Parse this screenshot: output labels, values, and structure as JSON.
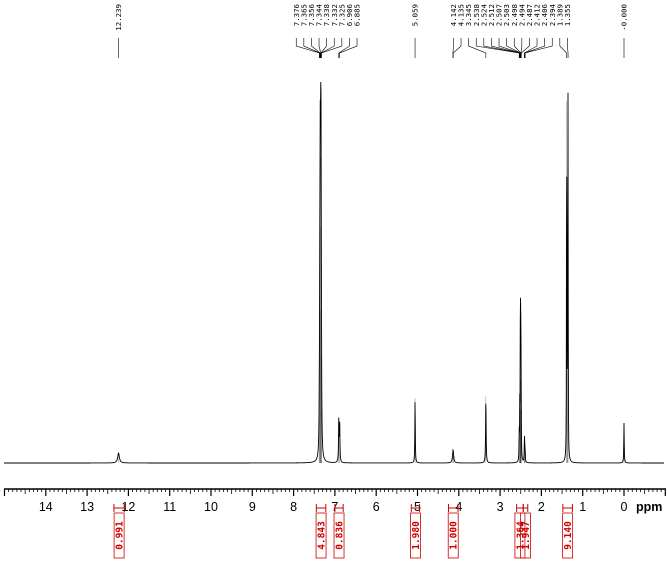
{
  "chart_data": {
    "type": "line",
    "title": "",
    "xlabel": "ppm",
    "ylabel": "",
    "x_reversed": true,
    "xlim": [
      15.0,
      -1.0
    ],
    "x_major_ticks": [
      14,
      13,
      12,
      11,
      10,
      9,
      8,
      7,
      6,
      5,
      4,
      3,
      2,
      1,
      0
    ],
    "x_minor_tick_step": 0.1,
    "ylim": [
      0,
      100
    ],
    "grid": false,
    "legend": "none",
    "colors": {
      "spectrum": "#000000",
      "integrals": "#cc0000",
      "axis": "#000000"
    },
    "peak_groups": [
      {
        "labels": [
          "12.239"
        ],
        "anchor_ppm": 12.239
      },
      {
        "labels": [
          "7.376",
          "7.365",
          "7.356",
          "7.344",
          "7.338",
          "7.332",
          "7.325",
          "6.906",
          "6.885"
        ],
        "anchor_ppm": 7.2
      },
      {
        "labels": [
          "5.059"
        ],
        "anchor_ppm": 5.059
      },
      {
        "labels": [
          "4.142",
          "4.135",
          "3.345",
          "2.538",
          "2.524",
          "2.512",
          "2.507",
          "2.503",
          "2.498",
          "2.494",
          "2.487",
          "2.412",
          "2.406",
          "2.394",
          "1.389",
          "1.355"
        ],
        "anchor_ppm": 2.75
      },
      {
        "labels": [
          "-0.000"
        ],
        "anchor_ppm": 0.0
      }
    ],
    "peaks": [
      {
        "ppm": 12.239,
        "height": 2.6,
        "width": 0.025
      },
      {
        "ppm": 7.376,
        "height": 12,
        "width": 0.006
      },
      {
        "ppm": 7.365,
        "height": 36,
        "width": 0.006
      },
      {
        "ppm": 7.356,
        "height": 62,
        "width": 0.006
      },
      {
        "ppm": 7.344,
        "height": 80,
        "width": 0.006
      },
      {
        "ppm": 7.338,
        "height": 40,
        "width": 0.006
      },
      {
        "ppm": 7.332,
        "height": 28,
        "width": 0.006
      },
      {
        "ppm": 7.325,
        "height": 14,
        "width": 0.006
      },
      {
        "ppm": 6.906,
        "height": 11,
        "width": 0.007
      },
      {
        "ppm": 6.885,
        "height": 11,
        "width": 0.007
      },
      {
        "ppm": 5.059,
        "height": 17,
        "width": 0.006
      },
      {
        "ppm": 4.142,
        "height": 1.8,
        "width": 0.015
      },
      {
        "ppm": 4.135,
        "height": 1.8,
        "width": 0.015
      },
      {
        "ppm": 3.345,
        "height": 17.5,
        "width": 0.007
      },
      {
        "ppm": 2.538,
        "height": 8,
        "width": 0.004
      },
      {
        "ppm": 2.524,
        "height": 13,
        "width": 0.004
      },
      {
        "ppm": 2.512,
        "height": 22,
        "width": 0.004
      },
      {
        "ppm": 2.507,
        "height": 22,
        "width": 0.004
      },
      {
        "ppm": 2.503,
        "height": 14,
        "width": 0.004
      },
      {
        "ppm": 2.498,
        "height": 22,
        "width": 0.004
      },
      {
        "ppm": 2.494,
        "height": 14,
        "width": 0.004
      },
      {
        "ppm": 2.487,
        "height": 8,
        "width": 0.004
      },
      {
        "ppm": 2.412,
        "height": 4.5,
        "width": 0.005
      },
      {
        "ppm": 2.406,
        "height": 4.5,
        "width": 0.005
      },
      {
        "ppm": 2.394,
        "height": 3,
        "width": 0.005
      },
      {
        "ppm": 1.389,
        "height": 95,
        "width": 0.004
      },
      {
        "ppm": 1.355,
        "height": 95,
        "width": 0.004
      },
      {
        "ppm": 1.38,
        "height": 30,
        "width": 0.004
      },
      {
        "ppm": 1.365,
        "height": 30,
        "width": 0.004
      },
      {
        "ppm": 0.0,
        "height": 10.5,
        "width": 0.006
      }
    ],
    "integrals": [
      {
        "value": "0.991",
        "range_ppm": [
          12.35,
          12.1
        ]
      },
      {
        "value": "4.843",
        "range_ppm": [
          7.45,
          7.22
        ]
      },
      {
        "value": "0.836",
        "range_ppm": [
          7.0,
          6.8
        ]
      },
      {
        "value": "1.980",
        "range_ppm": [
          5.15,
          4.95
        ]
      },
      {
        "value": "1.000",
        "range_ppm": [
          4.25,
          4.02
        ]
      },
      {
        "value": "1.364",
        "range_ppm": [
          2.6,
          2.44
        ]
      },
      {
        "value": "1.947",
        "range_ppm": [
          2.44,
          2.33
        ]
      },
      {
        "value": "9.140",
        "range_ppm": [
          1.48,
          1.25
        ]
      }
    ]
  }
}
